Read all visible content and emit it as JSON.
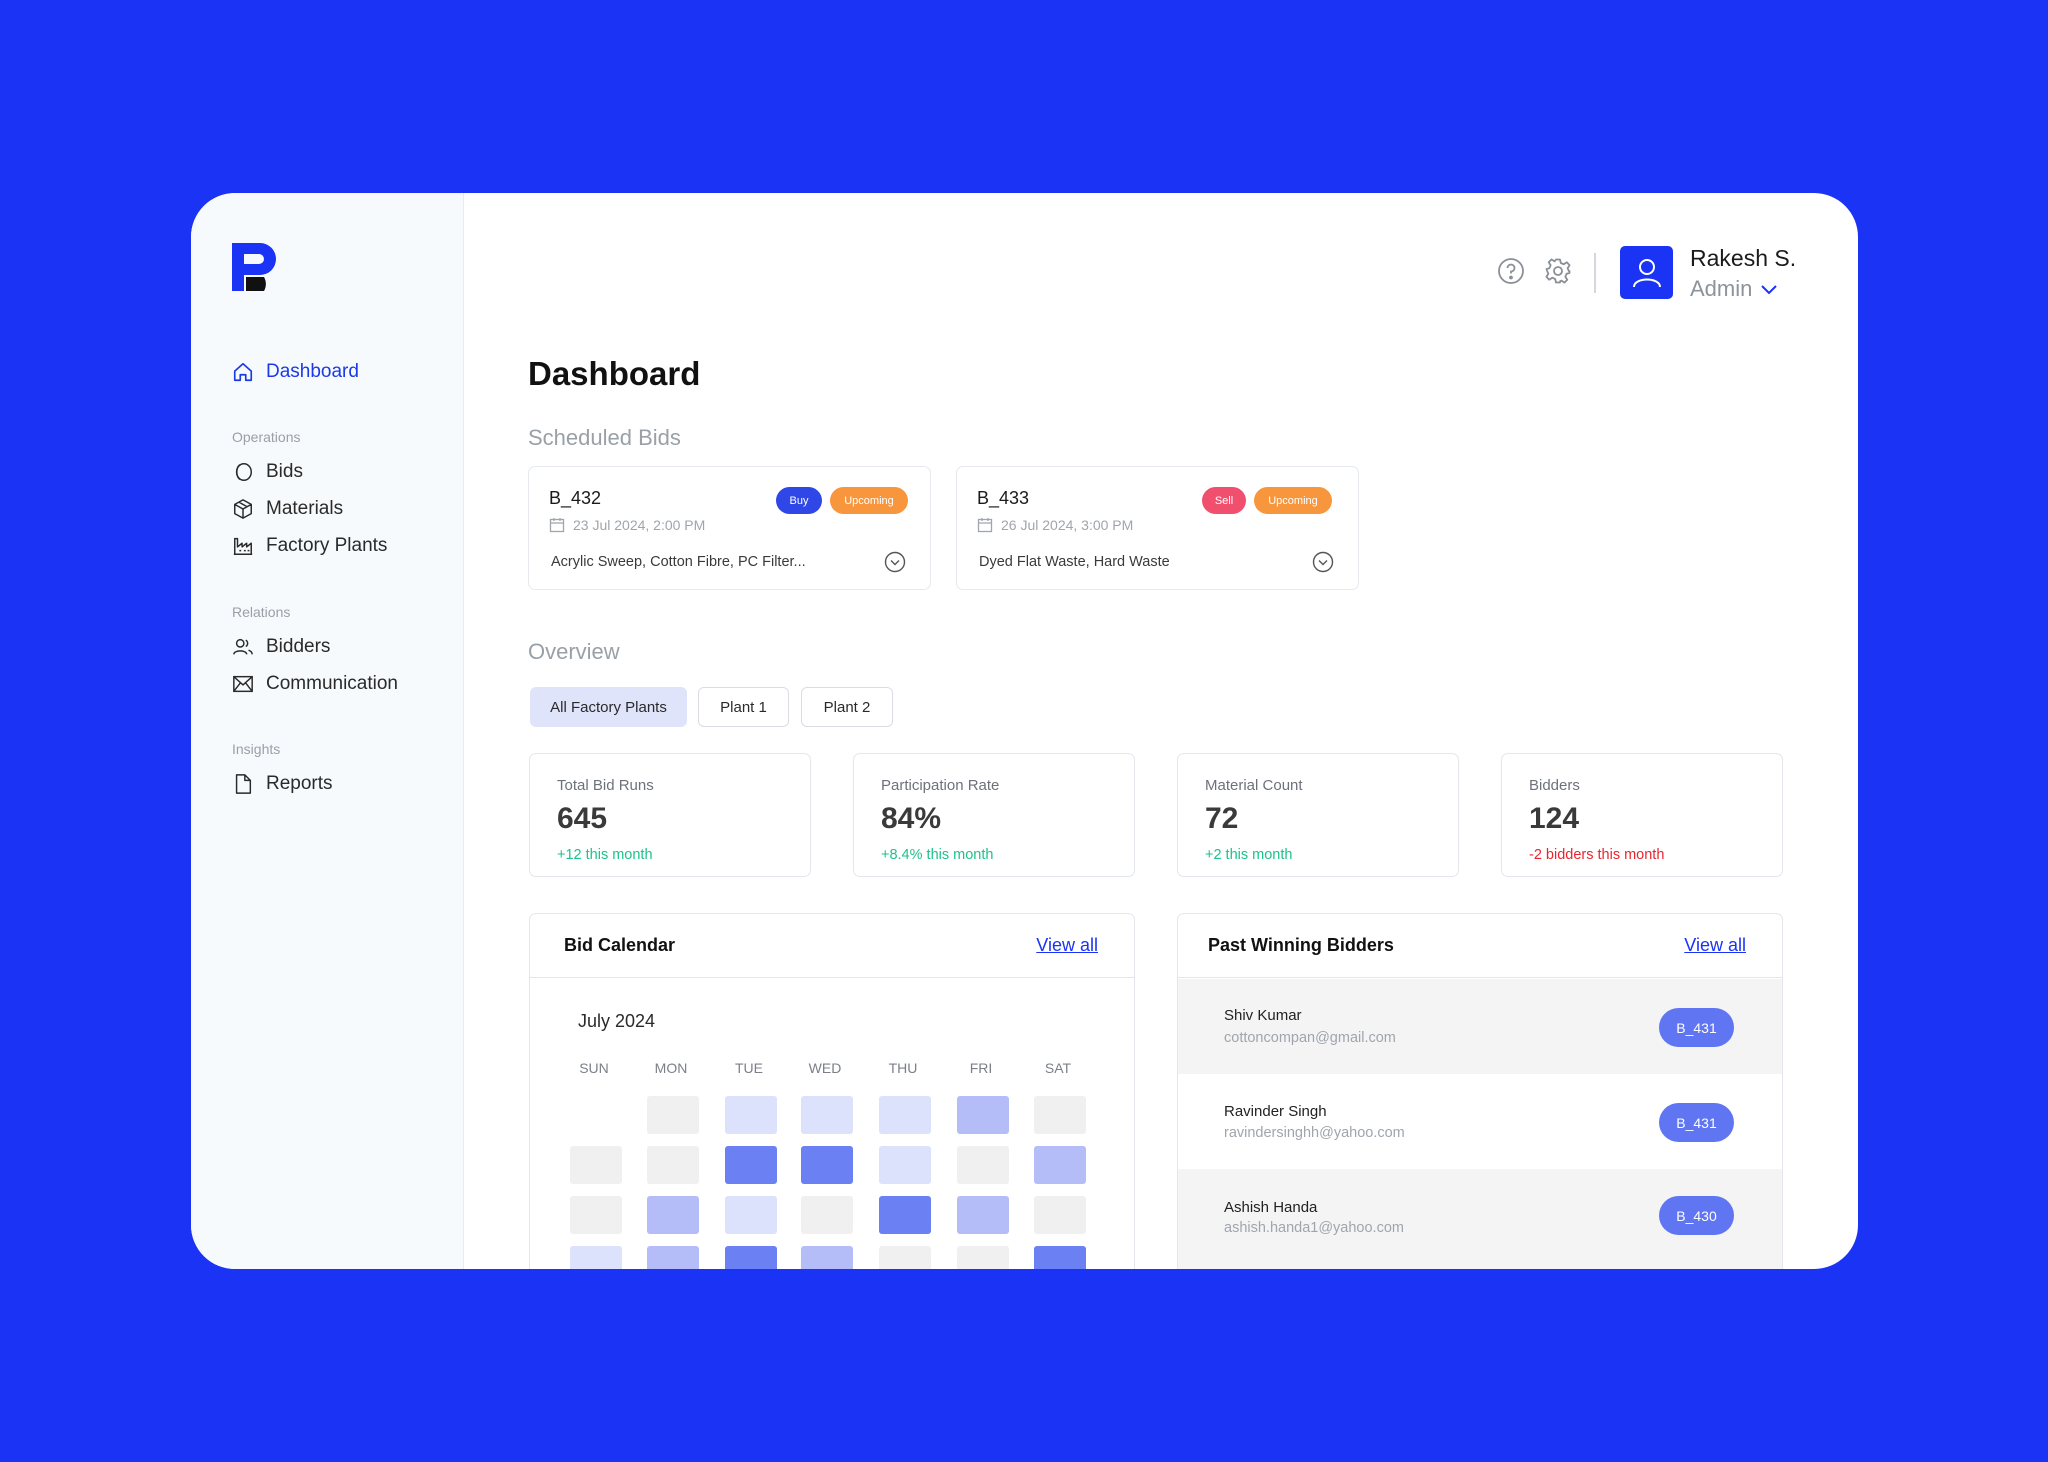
{
  "user": {
    "name": "Rakesh S.",
    "role": "Admin"
  },
  "nav": {
    "dashboard": "Dashboard",
    "sections": [
      {
        "title": "Operations",
        "items": [
          "Bids",
          "Materials",
          "Factory Plants"
        ]
      },
      {
        "title": "Relations",
        "items": [
          "Bidders",
          "Communication"
        ]
      },
      {
        "title": "Insights",
        "items": [
          "Reports"
        ]
      }
    ]
  },
  "page": {
    "title": "Dashboard",
    "scheduled_title": "Scheduled Bids",
    "overview_title": "Overview"
  },
  "bids": [
    {
      "id": "B_432",
      "type": "Buy",
      "status": "Upcoming",
      "date": "23 Jul 2024, 2:00 PM",
      "materials": "Acrylic Sweep, Cotton Fibre, PC Filter..."
    },
    {
      "id": "B_433",
      "type": "Sell",
      "status": "Upcoming",
      "date": "26 Jul 2024, 3:00 PM",
      "materials": "Dyed Flat Waste, Hard Waste"
    }
  ],
  "tabs": [
    "All Factory Plants",
    "Plant 1",
    "Plant 2"
  ],
  "stats": [
    {
      "label": "Total Bid Runs",
      "value": "645",
      "change": "+12 this month"
    },
    {
      "label": "Participation Rate",
      "value": "84%",
      "change": "+8.4% this month"
    },
    {
      "label": "Material Count",
      "value": "72",
      "change": "+2 this month"
    },
    {
      "label": "Bidders",
      "value": "124",
      "change": "-2 bidders this month"
    }
  ],
  "calendar": {
    "title": "Bid Calendar",
    "view_all": "View all",
    "month": "July 2024",
    "days": [
      "SUN",
      "MON",
      "TUE",
      "WED",
      "THU",
      "FRI",
      "SAT"
    ],
    "levels": [
      [
        null,
        0,
        1,
        1,
        1,
        2,
        0
      ],
      [
        0,
        0,
        3,
        3,
        1,
        0,
        2
      ],
      [
        0,
        2,
        1,
        0,
        3,
        2,
        0
      ],
      [
        1,
        2,
        3,
        2,
        0,
        0,
        3
      ]
    ],
    "level_colors": [
      "#f0f0f0",
      "#dde2fc",
      "#b4bdf8",
      "#6a80f3"
    ]
  },
  "winners": {
    "title": "Past Winning Bidders",
    "view_all": "View all",
    "rows": [
      {
        "name": "Shiv Kumar",
        "email": "cottoncompan@gmail.com",
        "bid": "B_431"
      },
      {
        "name": "Ravinder Singh",
        "email": "ravindersinghh@yahoo.com",
        "bid": "B_431"
      },
      {
        "name": "Ashish Handa",
        "email": "ashish.handa1@yahoo.com",
        "bid": "B_430"
      }
    ]
  },
  "colors": {
    "brand": "#1a33f5",
    "buy": "#2f47e6",
    "sell": "#f0506e",
    "upcoming": "#f7963d",
    "positive": "#1ec28b",
    "negative": "#e8252f"
  }
}
